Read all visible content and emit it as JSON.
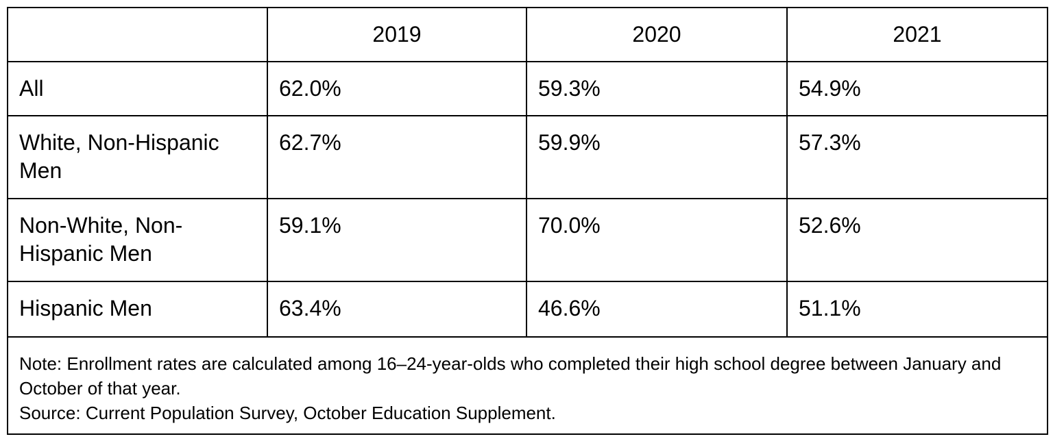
{
  "table": {
    "header": [
      "2019",
      "2020",
      "2021"
    ],
    "rows": [
      {
        "label": "All",
        "cells": [
          "62.0%",
          "59.3%",
          "54.9%"
        ]
      },
      {
        "label": "White, Non-Hispanic Men",
        "cells": [
          "62.7%",
          "59.9%",
          "57.3%"
        ]
      },
      {
        "label": "Non-White, Non-Hispanic Men",
        "cells": [
          "59.1%",
          "70.0%",
          "52.6%"
        ]
      },
      {
        "label": "Hispanic Men",
        "cells": [
          "63.4%",
          "46.6%",
          "51.1%"
        ]
      }
    ],
    "note": "Note: Enrollment rates are calculated among 16–24-year-olds who completed their high school degree between January and October of that year.",
    "source": "Source: Current Population Survey, October Education Supplement."
  }
}
